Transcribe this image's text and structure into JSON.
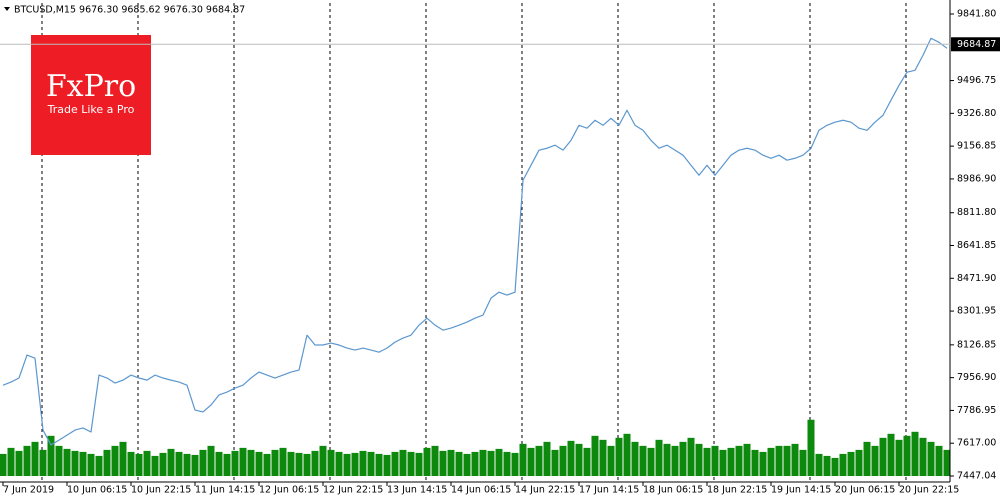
{
  "chart_data": {
    "type": "line",
    "title": "BTCUSD,M15  9676.30 9685.62 9676.30 9684.87",
    "logo_text": "FxPro",
    "logo_tagline": "Trade Like a Pro",
    "current_price": 9684.87,
    "categories": [
      "7 Jun 2019",
      null,
      null,
      null,
      null,
      null,
      null,
      null,
      "10 Jun 06:15",
      null,
      null,
      null,
      null,
      null,
      null,
      null,
      "10 Jun 22:15",
      null,
      null,
      null,
      null,
      null,
      null,
      null,
      "11 Jun 14:15",
      null,
      null,
      null,
      null,
      null,
      null,
      null,
      "12 Jun 06:15",
      null,
      null,
      null,
      null,
      null,
      null,
      null,
      "12 Jun 22:15",
      null,
      null,
      null,
      null,
      null,
      null,
      null,
      "13 Jun 14:15",
      null,
      null,
      null,
      null,
      null,
      null,
      null,
      "14 Jun 06:15",
      null,
      null,
      null,
      null,
      null,
      null,
      null,
      "14 Jun 22:15",
      null,
      null,
      null,
      null,
      null,
      null,
      null,
      "17 Jun 14:15",
      null,
      null,
      null,
      null,
      null,
      null,
      null,
      "18 Jun 06:15",
      null,
      null,
      null,
      null,
      null,
      null,
      null,
      "18 Jun 22:15",
      null,
      null,
      null,
      null,
      null,
      null,
      null,
      "19 Jun 14:15",
      null,
      null,
      null,
      null,
      null,
      null,
      null,
      "20 Jun 06:15",
      null,
      null,
      null,
      null,
      null,
      null,
      null,
      "20 Jun 22:15",
      null,
      null,
      null,
      null,
      null,
      null
    ],
    "series": [
      {
        "color": "#5b97cf",
        "values": [
          7918,
          7934,
          7955,
          8074,
          8058,
          7685,
          7608,
          7633,
          7659,
          7685,
          7696,
          7675,
          7970,
          7955,
          7929,
          7944,
          7970,
          7955,
          7944,
          7970,
          7955,
          7944,
          7934,
          7918,
          7789,
          7779,
          7815,
          7867,
          7882,
          7903,
          7918,
          7955,
          7986,
          7970,
          7955,
          7970,
          7986,
          7996,
          8177,
          8126,
          8126,
          8136,
          8126,
          8110,
          8100,
          8110,
          8100,
          8089,
          8110,
          8141,
          8162,
          8177,
          8229,
          8265,
          8229,
          8203,
          8214,
          8229,
          8245,
          8265,
          8281,
          8369,
          8400,
          8385,
          8400,
          8980,
          9058,
          9136,
          9146,
          9162,
          9136,
          9187,
          9265,
          9250,
          9291,
          9265,
          9301,
          9265,
          9343,
          9265,
          9239,
          9187,
          9146,
          9162,
          9136,
          9110,
          9058,
          9006,
          9058,
          9006,
          9058,
          9110,
          9136,
          9146,
          9136,
          9110,
          9094,
          9110,
          9084,
          9094,
          9110,
          9146,
          9239,
          9265,
          9281,
          9291,
          9281,
          9250,
          9239,
          9281,
          9317,
          9395,
          9472,
          9540,
          9550,
          9628,
          9716,
          9695,
          9664
        ]
      },
      {
        "color": "#0d8a0d",
        "axis": "y2",
        "values": [
          22,
          28,
          25,
          30,
          34,
          26,
          40,
          30,
          27,
          25,
          24,
          22,
          20,
          26,
          30,
          34,
          24,
          22,
          25,
          20,
          23,
          27,
          24,
          22,
          21,
          26,
          30,
          24,
          22,
          25,
          28,
          26,
          24,
          22,
          26,
          28,
          24,
          23,
          22,
          25,
          30,
          26,
          24,
          22,
          23,
          25,
          24,
          22,
          21,
          24,
          26,
          24,
          23,
          28,
          30,
          25,
          26,
          24,
          22,
          24,
          26,
          25,
          27,
          24,
          23,
          32,
          28,
          30,
          34,
          26,
          30,
          35,
          32,
          28,
          40,
          36,
          30,
          38,
          42,
          34,
          30,
          28,
          36,
          32,
          30,
          34,
          38,
          32,
          28,
          30,
          26,
          28,
          30,
          32,
          26,
          24,
          28,
          30,
          30,
          32,
          26,
          56,
          22,
          20,
          18,
          22,
          24,
          26,
          34,
          30,
          38,
          42,
          36,
          40,
          44,
          38,
          34,
          30,
          26
        ]
      }
    ],
    "ylim": [
      7447.04,
      9841.8
    ],
    "y2lim": [
      0,
      460
    ],
    "yticks": [
      {
        "value": 9841.8,
        "label": "9841.80"
      },
      9496.75,
      {
        "value": 9326.8,
        "label": "9326.80"
      },
      9156.85,
      {
        "value": 8986.9,
        "label": "8986.90"
      },
      {
        "value": 8811.8,
        "label": "8811.80"
      },
      8641.85,
      {
        "value": 8471.9,
        "label": "8471.90"
      },
      8301.95,
      8126.85,
      {
        "value": 7956.9,
        "label": "7956.90"
      },
      7786.95,
      {
        "value": 7617,
        "label": "7617.00"
      },
      7447.04
    ]
  }
}
